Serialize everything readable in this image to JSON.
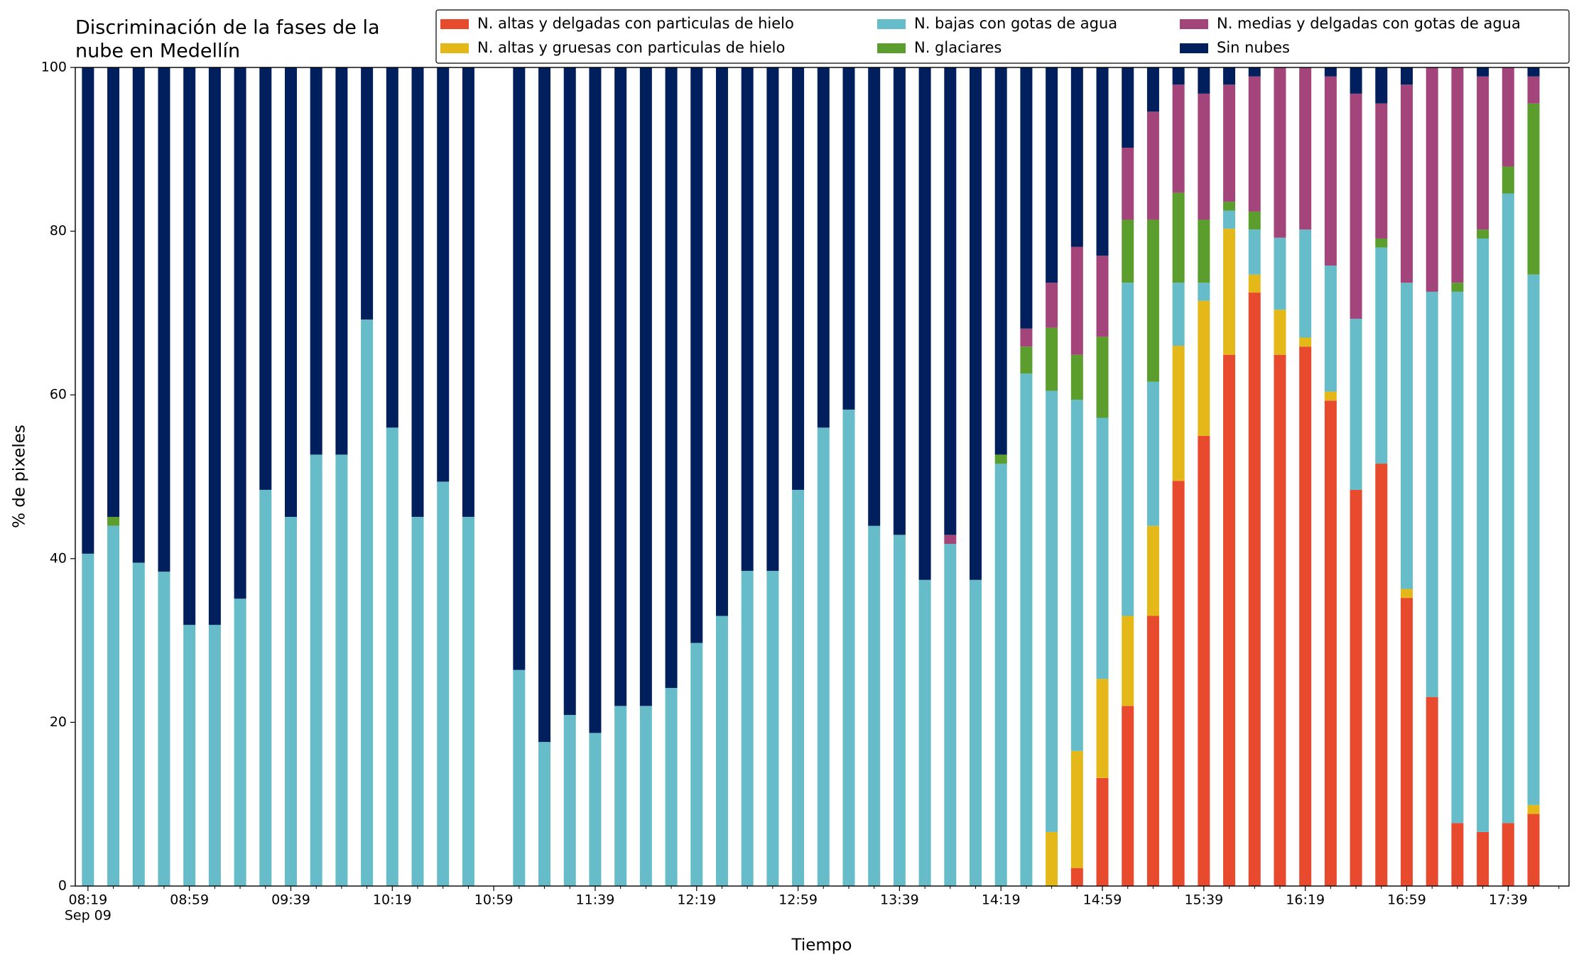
{
  "chart_data": {
    "type": "stacked_bar",
    "title": [
      "Discriminación de la fases de la",
      "nube en Medellín"
    ],
    "xlabel": "Tiempo",
    "ylabel": "% de pixeles",
    "xtick_date": "Sep 09",
    "x": [
      "08:19",
      "08:29",
      "08:39",
      "08:49",
      "08:59",
      "09:09",
      "09:19",
      "09:29",
      "09:39",
      "09:49",
      "09:59",
      "10:09",
      "10:19",
      "10:29",
      "10:39",
      "10:49",
      "11:09",
      "11:19",
      "11:29",
      "11:39",
      "11:49",
      "11:59",
      "12:09",
      "12:19",
      "12:29",
      "12:39",
      "12:49",
      "12:59",
      "13:09",
      "13:19",
      "13:29",
      "13:39",
      "13:49",
      "13:59",
      "14:09",
      "14:19",
      "14:29",
      "14:39",
      "14:49",
      "14:59",
      "15:09",
      "15:19",
      "15:29",
      "15:39",
      "15:49",
      "15:59",
      "16:09",
      "16:19",
      "16:29",
      "16:39",
      "16:49",
      "16:59",
      "17:09",
      "17:19",
      "17:29",
      "17:39",
      "17:49"
    ],
    "series": [
      {
        "name": "N. altas y delgadas con particulas de hielo",
        "color": "#e84a2e",
        "values": [
          0,
          0,
          0,
          0,
          0,
          0,
          0,
          0,
          0,
          0,
          0,
          0,
          0,
          0,
          0,
          0,
          0,
          0,
          0,
          0,
          0,
          0,
          0,
          0,
          0,
          0,
          0,
          0,
          0,
          0,
          0,
          0,
          0,
          0,
          0,
          0,
          0,
          0,
          2.2,
          13.2,
          22.0,
          33.0,
          49.5,
          55.0,
          64.9,
          72.5,
          64.9,
          65.9,
          59.3,
          48.4,
          51.6,
          35.2,
          23.1,
          7.7,
          6.6,
          7.7,
          8.8
        ]
      },
      {
        "name": "N. altas y gruesas con particulas de hielo",
        "color": "#e5b81a",
        "values": [
          0,
          0,
          0,
          0,
          0,
          0,
          0,
          0,
          0,
          0,
          0,
          0,
          0,
          0,
          0,
          0,
          0,
          0,
          0,
          0,
          0,
          0,
          0,
          0,
          0,
          0,
          0,
          0,
          0,
          0,
          0,
          0,
          0,
          0,
          0,
          0,
          0,
          6.6,
          14.3,
          12.1,
          11.0,
          11.0,
          16.5,
          16.5,
          15.4,
          2.2,
          5.5,
          1.1,
          1.1,
          0,
          0,
          1.1,
          0,
          0,
          0,
          0,
          1.1
        ]
      },
      {
        "name": "N. bajas con gotas de agua",
        "color": "#66bdc9",
        "values": [
          40.6,
          44.0,
          39.5,
          38.4,
          31.9,
          31.9,
          35.1,
          48.4,
          45.1,
          52.7,
          52.7,
          69.2,
          56.0,
          45.1,
          49.4,
          45.1,
          26.4,
          17.6,
          20.9,
          18.7,
          22.0,
          22.0,
          24.2,
          29.7,
          33.0,
          38.5,
          38.5,
          48.4,
          56.0,
          58.2,
          44.0,
          42.9,
          37.4,
          41.8,
          37.4,
          51.6,
          62.6,
          53.9,
          42.9,
          31.9,
          40.7,
          17.6,
          7.7,
          2.2,
          2.2,
          5.5,
          8.8,
          13.2,
          15.4,
          20.9,
          26.4,
          37.4,
          49.5,
          64.9,
          72.5,
          76.9,
          64.8
        ]
      },
      {
        "name": "N. glaciares",
        "color": "#5c9e2e",
        "values": [
          0,
          1.1,
          0,
          0,
          0,
          0,
          0,
          0,
          0,
          0,
          0,
          0,
          0,
          0,
          0,
          0,
          0,
          0,
          0,
          0,
          0,
          0,
          0,
          0,
          0,
          0,
          0,
          0,
          0,
          0,
          0,
          0,
          0,
          0,
          0,
          1.1,
          3.3,
          7.7,
          5.5,
          9.9,
          7.7,
          19.8,
          11.0,
          7.7,
          1.1,
          2.2,
          0,
          0,
          0,
          0,
          1.1,
          0,
          0,
          1.1,
          1.1,
          3.3,
          20.9
        ]
      },
      {
        "name": "N. medias y delgadas con gotas de agua",
        "color": "#a3457a",
        "values": [
          0,
          0,
          0,
          0,
          0,
          0,
          0,
          0,
          0,
          0,
          0,
          0,
          0,
          0,
          0,
          0,
          0,
          0,
          0,
          0,
          0,
          0,
          0,
          0,
          0,
          0,
          0,
          0,
          0,
          0,
          0,
          0,
          0,
          1.1,
          0,
          0,
          2.2,
          5.5,
          13.2,
          9.9,
          8.8,
          13.2,
          13.2,
          15.4,
          14.3,
          16.5,
          20.8,
          19.8,
          23.1,
          27.5,
          16.5,
          24.2,
          27.4,
          26.3,
          18.7,
          12.1,
          3.3
        ]
      },
      {
        "name": "Sin nubes",
        "color": "#001f5c",
        "values": [
          59.4,
          54.9,
          60.5,
          61.6,
          68.1,
          68.1,
          64.9,
          51.6,
          54.9,
          47.3,
          47.3,
          30.8,
          44.0,
          54.9,
          50.6,
          54.9,
          73.6,
          82.4,
          79.1,
          81.3,
          78.0,
          78.0,
          75.8,
          70.3,
          67.0,
          61.5,
          61.5,
          51.6,
          44.0,
          41.8,
          56.0,
          57.1,
          62.6,
          57.1,
          62.6,
          47.3,
          31.9,
          26.3,
          21.9,
          23.0,
          9.8,
          5.4,
          2.1,
          3.2,
          2.1,
          1.1,
          0,
          0,
          1.1,
          3.2,
          4.4,
          2.1,
          0,
          0,
          1.1,
          0,
          1.1
        ]
      }
    ],
    "xlim": [
      "08:14",
      "18:03"
    ],
    "xticks": [
      "08:19",
      "08:59",
      "09:39",
      "10:19",
      "10:59",
      "11:39",
      "12:19",
      "12:59",
      "13:39",
      "14:19",
      "14:59",
      "15:39",
      "16:19",
      "16:59",
      "17:39"
    ],
    "xminorticks": [
      "08:29",
      "08:39",
      "08:49",
      "09:09",
      "09:19",
      "09:29",
      "09:49",
      "09:59",
      "10:09",
      "10:29",
      "10:39",
      "10:49",
      "11:09",
      "11:19",
      "11:29",
      "11:49",
      "11:59",
      "12:09",
      "12:29",
      "12:39",
      "12:49",
      "13:09",
      "13:19",
      "13:29",
      "13:49",
      "13:59",
      "14:09",
      "14:29",
      "14:39",
      "14:49",
      "15:09",
      "15:19",
      "15:29",
      "15:49",
      "15:59",
      "16:09",
      "16:29",
      "16:39",
      "16:49",
      "17:09",
      "17:19",
      "17:29",
      "17:49",
      "17:59"
    ],
    "ylim": [
      0,
      100
    ],
    "yticks": [
      0,
      20,
      40,
      60,
      80,
      100
    ],
    "legend": "top-right",
    "legend_columns": 3
  }
}
